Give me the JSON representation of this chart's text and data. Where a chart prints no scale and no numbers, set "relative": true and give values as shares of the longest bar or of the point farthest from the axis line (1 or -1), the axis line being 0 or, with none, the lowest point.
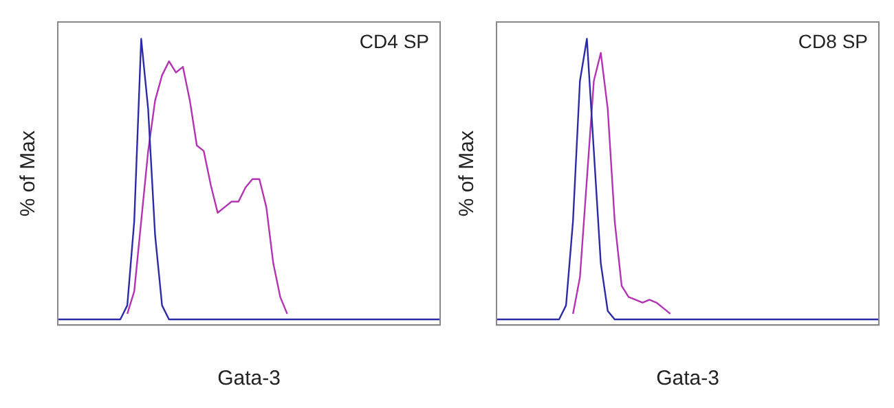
{
  "chart_data": [
    {
      "type": "line",
      "relative": true,
      "ylabel": "% of Max",
      "xlabel": "Gata-3",
      "annotations": [
        "CD4 SP"
      ],
      "grid": false,
      "legend": false,
      "marker": "none",
      "line_style": "solid",
      "categories": [
        null,
        null,
        null,
        null,
        null,
        null,
        null,
        null,
        null,
        null,
        null,
        null,
        null,
        null,
        null,
        null,
        null,
        null,
        null,
        null,
        null,
        null,
        null,
        null,
        null,
        null,
        null,
        null,
        null,
        null,
        null,
        null,
        null,
        null,
        null,
        null,
        null,
        null,
        null,
        null,
        null,
        null,
        null,
        null,
        null,
        null,
        null,
        null,
        null,
        null,
        null,
        null,
        null,
        null,
        null,
        null
      ],
      "series": [
        {
          "color": "#2b2ba8",
          "values": [
            0,
            0,
            0,
            0,
            0,
            0,
            0,
            0,
            0,
            0,
            0.05,
            0.35,
            1,
            0.75,
            0.3,
            0.05,
            0,
            0,
            0,
            0,
            0,
            0,
            0,
            0,
            0,
            0,
            0,
            0,
            0,
            0,
            0,
            0,
            0,
            0,
            0,
            0,
            0,
            0,
            0,
            0,
            0,
            0,
            0,
            0,
            0,
            0,
            0,
            0,
            0,
            0,
            0,
            0,
            0,
            0,
            0,
            0
          ]
        },
        {
          "color": "#b333b3",
          "values": [
            null,
            null,
            null,
            null,
            null,
            null,
            null,
            null,
            null,
            null,
            0.02,
            0.1,
            0.35,
            0.6,
            0.78,
            0.87,
            0.92,
            0.88,
            0.9,
            0.78,
            0.62,
            0.6,
            0.48,
            0.38,
            0.4,
            0.42,
            0.42,
            0.47,
            0.5,
            0.5,
            0.4,
            0.2,
            0.08,
            0.02,
            null,
            null,
            null,
            null,
            null,
            null,
            null,
            null,
            null,
            null,
            null,
            null,
            null,
            null,
            null,
            null,
            null,
            null,
            null,
            null,
            null,
            null
          ]
        }
      ]
    },
    {
      "type": "line",
      "relative": true,
      "ylabel": "% of Max",
      "xlabel": "Gata-3",
      "annotations": [
        "CD8 SP"
      ],
      "grid": false,
      "legend": false,
      "marker": "none",
      "line_style": "solid",
      "categories": [
        null,
        null,
        null,
        null,
        null,
        null,
        null,
        null,
        null,
        null,
        null,
        null,
        null,
        null,
        null,
        null,
        null,
        null,
        null,
        null,
        null,
        null,
        null,
        null,
        null,
        null,
        null,
        null,
        null,
        null,
        null,
        null,
        null,
        null,
        null,
        null,
        null,
        null,
        null,
        null,
        null,
        null,
        null,
        null,
        null,
        null,
        null,
        null,
        null,
        null,
        null,
        null,
        null,
        null,
        null,
        null
      ],
      "series": [
        {
          "color": "#2b2ba8",
          "values": [
            0,
            0,
            0,
            0,
            0,
            0,
            0,
            0,
            0,
            0,
            0.05,
            0.35,
            0.85,
            1,
            0.6,
            0.2,
            0.03,
            0,
            0,
            0,
            0,
            0,
            0,
            0,
            0,
            0,
            0,
            0,
            0,
            0,
            0,
            0,
            0,
            0,
            0,
            0,
            0,
            0,
            0,
            0,
            0,
            0,
            0,
            0,
            0,
            0,
            0,
            0,
            0,
            0,
            0,
            0,
            0,
            0,
            0,
            0
          ]
        },
        {
          "color": "#b333b3",
          "values": [
            null,
            null,
            null,
            null,
            null,
            null,
            null,
            null,
            null,
            null,
            null,
            0.02,
            0.15,
            0.5,
            0.85,
            0.95,
            0.75,
            0.35,
            0.12,
            0.08,
            0.07,
            0.06,
            0.07,
            0.06,
            0.04,
            0.02,
            null,
            null,
            null,
            null,
            null,
            null,
            null,
            null,
            null,
            null,
            null,
            null,
            null,
            null,
            null,
            null,
            null,
            null,
            null,
            null,
            null,
            null,
            null,
            null,
            null,
            null,
            null,
            null,
            null,
            null
          ]
        }
      ]
    }
  ]
}
